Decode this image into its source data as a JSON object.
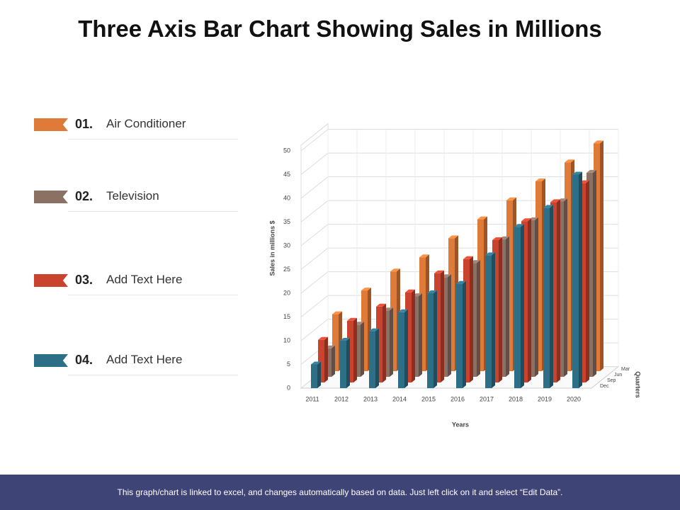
{
  "chart_data": {
    "type": "bar3d",
    "title": "Three Axis Bar Chart Showing Sales in Millions",
    "y_label": "Sales in millions $",
    "x_label": "Years",
    "z_label": "Quarters",
    "categories": [
      "2011",
      "2012",
      "2013",
      "2014",
      "2015",
      "2016",
      "2017",
      "2018",
      "2019",
      "2020"
    ],
    "z_categories": [
      "Mar",
      "Jun",
      "Sep",
      "Dec"
    ],
    "legend_numbers": [
      "01.",
      "02.",
      "03.",
      "04."
    ],
    "series": [
      {
        "name": "Air Conditioner",
        "color": "#e07a38",
        "values": [
          12,
          17,
          21,
          24,
          28,
          32,
          36,
          40,
          44,
          48
        ]
      },
      {
        "name": "Television",
        "color": "#8b7064",
        "values": [
          6,
          11,
          14,
          17,
          21,
          24,
          29,
          33,
          37,
          43
        ]
      },
      {
        "name": "Add Text Here",
        "color": "#c9432e",
        "values": [
          9,
          13,
          16,
          19,
          23,
          26,
          30,
          34,
          38,
          42
        ]
      },
      {
        "name": "Add Text Here",
        "color": "#2e6f88",
        "values": [
          5,
          10,
          12,
          16,
          20,
          22,
          28,
          34,
          38,
          45
        ]
      }
    ],
    "ylim": [
      0,
      50
    ],
    "yticks": [
      0,
      5,
      10,
      15,
      20,
      25,
      30,
      35,
      40,
      45,
      50
    ],
    "grid": true
  },
  "footer": "This graph/chart is linked to excel, and changes automatically based on data. Just left click on it and select “Edit Data”."
}
